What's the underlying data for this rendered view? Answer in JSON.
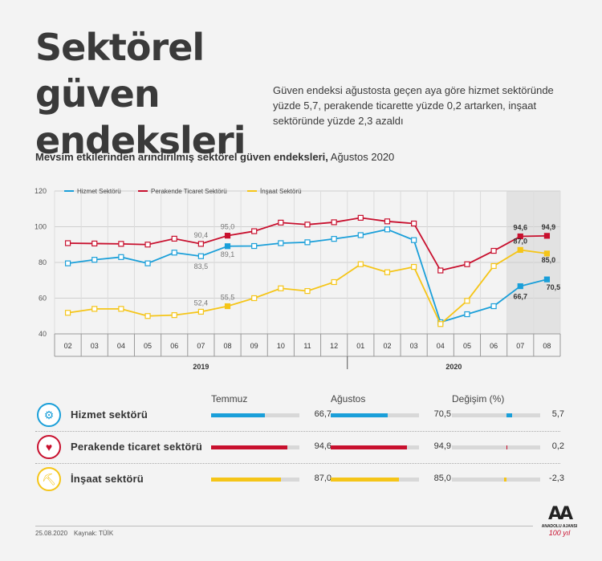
{
  "header": {
    "title_line1": "Sektörel güven",
    "title_line2": "endeksleri",
    "description": "Güven endeksi ağustosta geçen aya göre hizmet sektöründe yüzde 5,7, perakende ticarette yüzde 0,2 artarken, inşaat sektöründe yüzde 2,3 azaldı",
    "subtitle_bold": "Mevsim etkilerinden arındırılmış sektörel güven endeksleri,",
    "subtitle_rest": " Ağustos 2020"
  },
  "chart_data": {
    "type": "line",
    "categories": [
      "02",
      "03",
      "04",
      "05",
      "06",
      "07",
      "08",
      "09",
      "10",
      "11",
      "12",
      "01",
      "02",
      "03",
      "04",
      "05",
      "06",
      "07",
      "08"
    ],
    "year_labels": [
      "2019",
      "2020"
    ],
    "ylim": [
      40,
      120
    ],
    "yticks": [
      40,
      60,
      80,
      100,
      120
    ],
    "grid": true,
    "legend_position": "top-left",
    "series": [
      {
        "name": "Hizmet Sektörü",
        "color": "#1a9fd9",
        "values": [
          79.5,
          81.5,
          83,
          79.5,
          85.5,
          83.5,
          89.1,
          89.2,
          90.8,
          91.3,
          93.2,
          95.3,
          98.5,
          92.5,
          46.5,
          51,
          55.5,
          66.7,
          70.5
        ]
      },
      {
        "name": "Perakende Ticaret Sektörü",
        "color": "#c8102e",
        "values": [
          90.8,
          90.6,
          90.4,
          90,
          93.3,
          90.4,
          95.0,
          97.5,
          102.3,
          101.2,
          102.5,
          105,
          103,
          101.8,
          75.5,
          79,
          86.5,
          94.6,
          94.9
        ]
      },
      {
        "name": "İnşaat Sektörü",
        "color": "#f5c518",
        "values": [
          51.8,
          54,
          54,
          50,
          50.5,
          52.4,
          55.5,
          60,
          65.5,
          64,
          69,
          79,
          74.5,
          77.5,
          45.5,
          58.5,
          78,
          87.0,
          85.0
        ]
      }
    ],
    "annotations": [
      {
        "series": 1,
        "index": 5,
        "label": "90,4"
      },
      {
        "series": 1,
        "index": 6,
        "label": "95,0"
      },
      {
        "series": 0,
        "index": 5,
        "label": "83,5"
      },
      {
        "series": 0,
        "index": 6,
        "label": "89,1"
      },
      {
        "series": 2,
        "index": 5,
        "label": "52,4"
      },
      {
        "series": 2,
        "index": 6,
        "label": "55,5"
      },
      {
        "series": 1,
        "index": 17,
        "label": "94,6"
      },
      {
        "series": 1,
        "index": 18,
        "label": "94,9"
      },
      {
        "series": 2,
        "index": 17,
        "label": "87,0"
      },
      {
        "series": 2,
        "index": 18,
        "label": "85,0"
      },
      {
        "series": 0,
        "index": 17,
        "label": "66,7"
      },
      {
        "series": 0,
        "index": 18,
        "label": "70,5"
      }
    ]
  },
  "table": {
    "headers": [
      "Temmuz",
      "Ağustos",
      "Değişim (%)"
    ],
    "rows": [
      {
        "label": "Hizmet sektörü",
        "icon": "gears-icon",
        "color": "#1a9fd9",
        "jul": 66.7,
        "aug": 70.5,
        "chg": 5.7,
        "jul_text": "66,7",
        "aug_text": "70,5",
        "chg_text": "5,7"
      },
      {
        "label": "Perakende ticaret sektörü",
        "icon": "shopping-icon",
        "color": "#c8102e",
        "jul": 94.6,
        "aug": 94.9,
        "chg": 0.2,
        "jul_text": "94,6",
        "aug_text": "94,9",
        "chg_text": "0,2"
      },
      {
        "label": "İnşaat sektörü",
        "icon": "excavator-icon",
        "color": "#f5c518",
        "jul": 87.0,
        "aug": 85.0,
        "chg": -2.3,
        "jul_text": "87,0",
        "aug_text": "85,0",
        "chg_text": "-2,3"
      }
    ]
  },
  "footer": {
    "date": "25.08.2020",
    "source": "Kaynak: TÜİK",
    "logo_text": "AA",
    "logo_sub": "ANADOLU AJANSI",
    "logo_year": "100 yıl"
  }
}
